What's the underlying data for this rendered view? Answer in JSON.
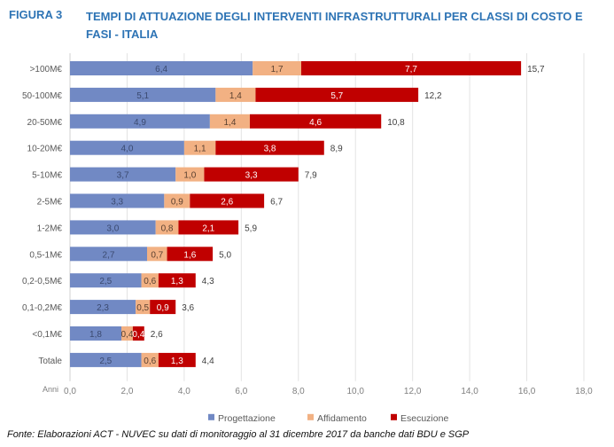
{
  "figure": {
    "label": "FIGURA 3",
    "title": "TEMPI DI ATTUAZIONE DEGLI INTERVENTI INFRASTRUTTURALI PER CLASSI DI COSTO E FASI - ITALIA"
  },
  "source": "Fonte: Elaborazioni ACT - NUVEC su dati di monitoraggio al 31 dicembre 2017 da banche dati BDU e SGP",
  "chart_data": {
    "type": "bar",
    "orientation": "horizontal",
    "stacked": true,
    "title": "TEMPI DI ATTUAZIONE DEGLI INTERVENTI INFRASTRUTTURALI PER CLASSI DI COSTO E FASI - ITALIA",
    "xlabel": "Anni",
    "ylabel": "",
    "xlim": [
      0,
      18
    ],
    "xticks": [
      0,
      2,
      4,
      6,
      8,
      10,
      12,
      14,
      16,
      18
    ],
    "xtick_labels": [
      "0,0",
      "2,0",
      "4,0",
      "6,0",
      "8,0",
      "10,0",
      "12,0",
      "14,0",
      "16,0",
      "18,0"
    ],
    "grid": "vertical",
    "legend": "bottom",
    "categories": [
      ">100M€",
      "50-100M€",
      "20-50M€",
      "10-20M€",
      "5-10M€",
      "2-5M€",
      "1-2M€",
      "0,5-1M€",
      "0,2-0,5M€",
      "0,1-0,2M€",
      "<0,1M€",
      "Totale"
    ],
    "series": [
      {
        "name": "Progettazione",
        "color": "#7189c4",
        "label_color": "#3b4a70",
        "values": [
          6.4,
          5.1,
          4.9,
          4.0,
          3.7,
          3.3,
          3.0,
          2.7,
          2.5,
          2.3,
          1.8,
          2.5
        ]
      },
      {
        "name": "Affidamento",
        "color": "#f2b183",
        "label_color": "#5a4030",
        "values": [
          1.7,
          1.4,
          1.4,
          1.1,
          1.0,
          0.9,
          0.8,
          0.7,
          0.6,
          0.5,
          0.4,
          0.6
        ]
      },
      {
        "name": "Esecuzione",
        "color": "#c00000",
        "label_color": "#ffffff",
        "values": [
          7.7,
          5.7,
          4.6,
          3.8,
          3.3,
          2.6,
          2.1,
          1.6,
          1.3,
          0.9,
          0.4,
          1.3
        ]
      }
    ],
    "totals": [
      15.7,
      12.2,
      10.8,
      8.9,
      7.9,
      6.7,
      5.9,
      5.0,
      4.3,
      3.6,
      2.6,
      4.4
    ]
  }
}
